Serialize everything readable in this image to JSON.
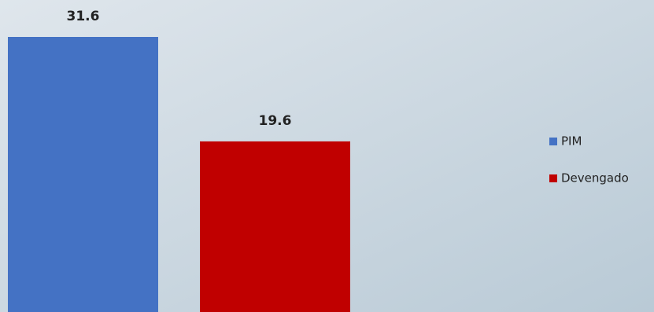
{
  "chart_data": {
    "type": "bar",
    "series": [
      {
        "name": "PIM",
        "color": "#4472c4",
        "values": [
          31.6
        ]
      },
      {
        "name": "Devengado",
        "color": "#c00000",
        "values": [
          19.6
        ]
      }
    ],
    "legend": "right"
  }
}
